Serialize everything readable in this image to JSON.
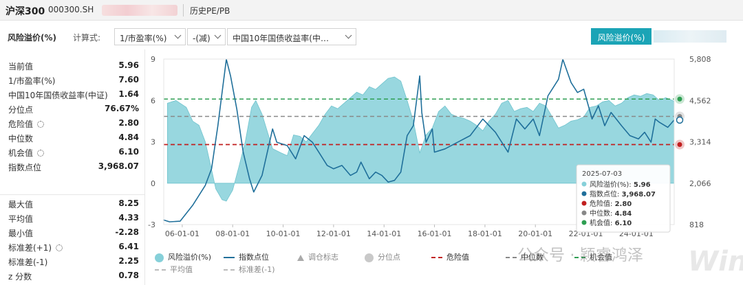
{
  "header": {
    "index_name": "沪深300",
    "index_code": "000300.SH",
    "mode": "历史PE/PB"
  },
  "controls": {
    "title": "风险溢价(%)",
    "calc_label": "计算式:",
    "select_1": "1/市盈率(%)",
    "select_2": "-(减)",
    "select_3": "中国10年国债收益率(中…",
    "button": "风险溢价(%)"
  },
  "stats": {
    "current": {
      "label": "当前值",
      "value": "5.96"
    },
    "pe_inv": {
      "label": "1/市盈率(%)",
      "value": "7.60"
    },
    "bond": {
      "label": "中国10年国债收益率(中证)",
      "value": "1.64"
    },
    "percentile": {
      "label": "分位点",
      "value": "76.67%"
    },
    "danger": {
      "label": "危险值",
      "value": "2.80"
    },
    "median": {
      "label": "中位数",
      "value": "4.84"
    },
    "opportunity": {
      "label": "机会值",
      "value": "6.10"
    },
    "index_pt": {
      "label": "指数点位",
      "value": "3,968.07"
    },
    "max": {
      "label": "最大值",
      "value": "8.25"
    },
    "mean": {
      "label": "平均值",
      "value": "4.33"
    },
    "min": {
      "label": "最小值",
      "value": "-2.28"
    },
    "std_plus": {
      "label": "标准差(+1)",
      "value": "6.41"
    },
    "std_minus": {
      "label": "标准差(-1)",
      "value": "2.25"
    },
    "z": {
      "label": "z 分数",
      "value": "0.78"
    }
  },
  "chart_data": {
    "type": "area",
    "x_ticks": [
      "06-01-01",
      "08-01-01",
      "10-01-01",
      "12-01-01",
      "14-01-01",
      "16-01-01",
      "18-01-01",
      "20-01-01",
      "22-01-01",
      "24-01-01"
    ],
    "x_range": [
      "2005-04-08",
      "2025-07-03"
    ],
    "y_left_ticks": [
      "9",
      "6",
      "3",
      "0",
      "-3"
    ],
    "y_left_range": [
      -3,
      9
    ],
    "y_right_ticks": [
      "5,808",
      "4,562",
      "3,314",
      "2,066",
      "818"
    ],
    "y_right_range": [
      818,
      5808
    ],
    "grid": false,
    "reference_lines": {
      "danger": 2.8,
      "median": 4.84,
      "opportunity": 6.1
    },
    "colors": {
      "area": "#86d0d9",
      "index": "#1f6f9a",
      "danger": "#c11f1f",
      "median": "#888888",
      "opportunity": "#2e9e52"
    },
    "series": [
      {
        "name": "风险溢价(%)",
        "axis": "left",
        "x": [
          "2005-06",
          "2005-10",
          "2006-03",
          "2006-06",
          "2006-09",
          "2006-12",
          "2007-03",
          "2007-05",
          "2007-08",
          "2007-10",
          "2008-01",
          "2008-04",
          "2008-07",
          "2008-10",
          "2008-12",
          "2009-03",
          "2009-06",
          "2009-08",
          "2009-12",
          "2010-03",
          "2010-06",
          "2010-09",
          "2010-12",
          "2011-03",
          "2011-06",
          "2011-09",
          "2011-12",
          "2012-03",
          "2012-06",
          "2012-09",
          "2012-12",
          "2013-03",
          "2013-06",
          "2013-09",
          "2013-12",
          "2014-03",
          "2014-06",
          "2014-09",
          "2014-12",
          "2015-03",
          "2015-06",
          "2015-09",
          "2015-12",
          "2016-03",
          "2016-06",
          "2016-09",
          "2016-12",
          "2017-03",
          "2017-06",
          "2017-09",
          "2017-12",
          "2018-03",
          "2018-06",
          "2018-09",
          "2018-12",
          "2019-03",
          "2019-06",
          "2019-09",
          "2019-12",
          "2020-03",
          "2020-06",
          "2020-09",
          "2020-12",
          "2021-03",
          "2021-06",
          "2021-09",
          "2021-12",
          "2022-03",
          "2022-06",
          "2022-09",
          "2022-12",
          "2023-03",
          "2023-06",
          "2023-09",
          "2023-12",
          "2024-03",
          "2024-06",
          "2024-09",
          "2024-12",
          "2025-03",
          "2025-07"
        ],
        "values": [
          5.8,
          6.0,
          5.5,
          4.5,
          4.2,
          3.0,
          1.0,
          -0.4,
          -1.2,
          -1.3,
          -0.5,
          1.2,
          3.0,
          5.5,
          6.0,
          5.0,
          3.5,
          2.5,
          2.2,
          2.0,
          3.5,
          3.4,
          3.0,
          3.6,
          4.2,
          5.0,
          5.6,
          5.4,
          5.8,
          6.2,
          6.6,
          6.4,
          7.0,
          6.8,
          7.2,
          7.6,
          7.7,
          7.4,
          6.0,
          4.5,
          2.2,
          3.5,
          4.0,
          5.2,
          5.6,
          5.0,
          4.8,
          4.7,
          4.5,
          4.2,
          3.8,
          4.5,
          5.0,
          5.8,
          6.0,
          5.2,
          5.4,
          5.5,
          5.2,
          5.8,
          5.6,
          4.8,
          4.0,
          4.2,
          4.5,
          4.6,
          4.8,
          5.5,
          5.6,
          5.9,
          6.0,
          5.6,
          5.8,
          6.2,
          6.4,
          6.3,
          6.5,
          6.4,
          6.0,
          6.2,
          5.96
        ]
      },
      {
        "name": "指数点位",
        "axis": "right",
        "x": [
          "2005-04",
          "2005-07",
          "2005-12",
          "2006-06",
          "2006-12",
          "2007-03",
          "2007-06",
          "2007-08",
          "2007-10",
          "2007-12",
          "2008-03",
          "2008-06",
          "2008-09",
          "2008-11",
          "2009-03",
          "2009-08",
          "2009-10",
          "2010-03",
          "2010-07",
          "2010-11",
          "2011-03",
          "2011-06",
          "2011-10",
          "2012-01",
          "2012-05",
          "2012-09",
          "2012-12",
          "2013-02",
          "2013-06",
          "2013-09",
          "2013-12",
          "2014-03",
          "2014-06",
          "2014-09",
          "2014-12",
          "2015-03",
          "2015-06",
          "2015-07",
          "2015-09",
          "2015-12",
          "2016-01",
          "2016-06",
          "2016-12",
          "2017-06",
          "2017-12",
          "2018-06",
          "2018-12",
          "2019-04",
          "2019-08",
          "2019-12",
          "2020-03",
          "2020-07",
          "2020-12",
          "2021-02",
          "2021-06",
          "2021-09",
          "2021-12",
          "2022-04",
          "2022-07",
          "2022-10",
          "2023-01",
          "2023-06",
          "2023-10",
          "2024-02",
          "2024-05",
          "2024-08",
          "2024-10",
          "2024-12",
          "2025-04",
          "2025-07"
        ],
        "values": [
          960,
          900,
          920,
          1400,
          2000,
          2500,
          3800,
          4800,
          5800,
          5300,
          4300,
          3000,
          2200,
          1800,
          2300,
          3700,
          3300,
          3200,
          2800,
          3500,
          3300,
          3000,
          2600,
          2500,
          2600,
          2300,
          2400,
          2700,
          2200,
          2400,
          2300,
          2100,
          2150,
          2400,
          3500,
          3800,
          5300,
          4200,
          3300,
          3700,
          3000,
          3100,
          3300,
          3500,
          4000,
          3600,
          3000,
          4000,
          3700,
          4000,
          3500,
          4700,
          5200,
          5800,
          5100,
          4800,
          4900,
          4000,
          4400,
          3800,
          4200,
          3800,
          3500,
          3400,
          3600,
          3300,
          4000,
          3900,
          3750,
          3968.07
        ]
      }
    ]
  },
  "legend": {
    "area": "风险溢价(%)",
    "index": "指数点位",
    "adjust": "调仓标志",
    "pct": "分位点",
    "danger": "危险值",
    "median": "中位数",
    "opportunity": "机会值",
    "mean": "平均值",
    "std_minus": "标准差(-1)"
  },
  "tooltip": {
    "date": "2025-07-03",
    "rows": [
      {
        "label": "风险溢价(%): ",
        "value": "5.96"
      },
      {
        "label": "指数点位: ",
        "value": "3,968.07"
      },
      {
        "label": "危险值: ",
        "value": "2.80"
      },
      {
        "label": "中位数: ",
        "value": "4.84"
      },
      {
        "label": "机会值: ",
        "value": "6.10"
      }
    ]
  },
  "watermark": {
    "text": "公众号 · 颖睿鸿泽",
    "logo": "Win.d"
  }
}
